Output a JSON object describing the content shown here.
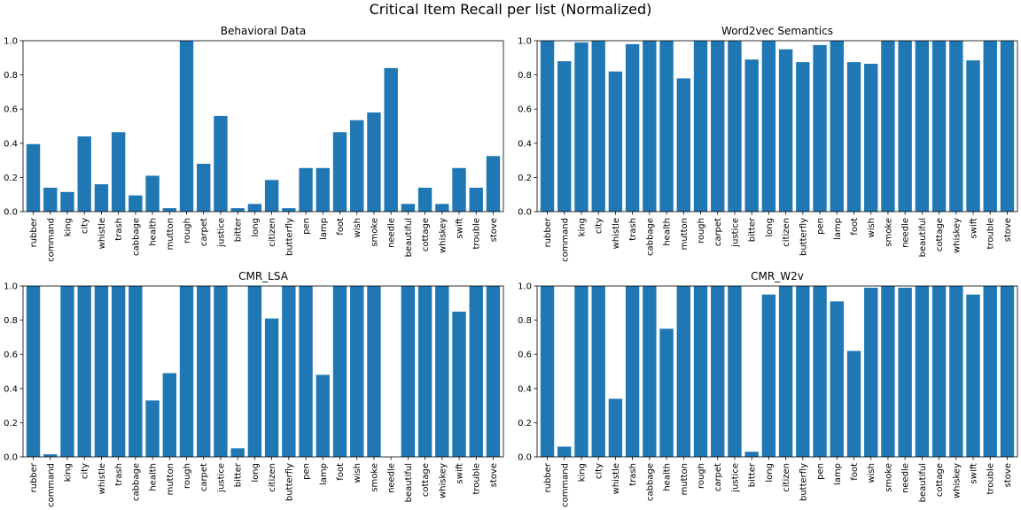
{
  "figure": {
    "title": "Critical Item Recall per list (Normalized)"
  },
  "colors": {
    "bar": "#1f77b4",
    "axis": "#000000",
    "background": "#ffffff"
  },
  "chart_data": [
    {
      "type": "bar",
      "title": "Behavioral Data",
      "xlabel": "",
      "ylabel": "",
      "ylim": [
        0,
        1
      ],
      "yticks": [
        "0.0",
        "0.2",
        "0.4",
        "0.6",
        "0.8",
        "1.0"
      ],
      "grid": false,
      "categories": [
        "rubber",
        "command",
        "king",
        "city",
        "whistle",
        "trash",
        "cabbage",
        "health",
        "mutton",
        "rough",
        "carpet",
        "justice",
        "bitter",
        "long",
        "citizen",
        "butterfly",
        "pen",
        "lamp",
        "foot",
        "wish",
        "smoke",
        "needle",
        "beautiful",
        "cottage",
        "whiskey",
        "swift",
        "trouble",
        "stove"
      ],
      "values": [
        0.395,
        0.14,
        0.115,
        0.44,
        0.16,
        0.465,
        0.095,
        0.21,
        0.02,
        1.0,
        0.28,
        0.56,
        0.02,
        0.045,
        0.185,
        0.02,
        0.255,
        0.255,
        0.465,
        0.535,
        0.58,
        0.84,
        0.045,
        0.14,
        0.045,
        0.255,
        0.14,
        0.325
      ]
    },
    {
      "type": "bar",
      "title": "Word2vec Semantics",
      "xlabel": "",
      "ylabel": "",
      "ylim": [
        0,
        1
      ],
      "yticks": [
        "0.0",
        "0.2",
        "0.4",
        "0.6",
        "0.8",
        "1.0"
      ],
      "grid": false,
      "categories": [
        "rubber",
        "command",
        "king",
        "city",
        "whistle",
        "trash",
        "cabbage",
        "health",
        "mutton",
        "rough",
        "carpet",
        "justice",
        "bitter",
        "long",
        "citizen",
        "butterfly",
        "pen",
        "lamp",
        "foot",
        "wish",
        "smoke",
        "needle",
        "beautiful",
        "cottage",
        "whiskey",
        "swift",
        "trouble",
        "stove"
      ],
      "values": [
        1.0,
        0.88,
        0.99,
        1.0,
        0.82,
        0.98,
        1.0,
        1.0,
        0.78,
        1.0,
        1.0,
        1.0,
        0.89,
        1.0,
        0.95,
        0.875,
        0.975,
        1.0,
        0.875,
        0.865,
        1.0,
        1.0,
        1.0,
        1.0,
        1.0,
        0.885,
        1.0,
        1.0
      ]
    },
    {
      "type": "bar",
      "title": "CMR_LSA",
      "xlabel": "",
      "ylabel": "",
      "ylim": [
        0,
        1
      ],
      "yticks": [
        "0.0",
        "0.2",
        "0.4",
        "0.6",
        "0.8",
        "1.0"
      ],
      "grid": false,
      "categories": [
        "rubber",
        "command",
        "king",
        "city",
        "whistle",
        "trash",
        "cabbage",
        "health",
        "mutton",
        "rough",
        "carpet",
        "justice",
        "bitter",
        "long",
        "citizen",
        "butterfly",
        "pen",
        "lamp",
        "foot",
        "wish",
        "smoke",
        "needle",
        "beautiful",
        "cottage",
        "whiskey",
        "swift",
        "trouble",
        "stove"
      ],
      "values": [
        1.0,
        0.015,
        1.0,
        1.0,
        1.0,
        1.0,
        1.0,
        0.33,
        0.49,
        1.0,
        1.0,
        1.0,
        0.05,
        1.0,
        0.81,
        1.0,
        1.0,
        0.48,
        1.0,
        1.0,
        1.0,
        0.0,
        1.0,
        1.0,
        1.0,
        0.85,
        1.0,
        1.0
      ]
    },
    {
      "type": "bar",
      "title": "CMR_W2v",
      "xlabel": "",
      "ylabel": "",
      "ylim": [
        0,
        1
      ],
      "yticks": [
        "0.0",
        "0.2",
        "0.4",
        "0.6",
        "0.8",
        "1.0"
      ],
      "grid": false,
      "categories": [
        "rubber",
        "command",
        "king",
        "city",
        "whistle",
        "trash",
        "cabbage",
        "health",
        "mutton",
        "rough",
        "carpet",
        "justice",
        "bitter",
        "long",
        "citizen",
        "butterfly",
        "pen",
        "lamp",
        "foot",
        "wish",
        "smoke",
        "needle",
        "beautiful",
        "cottage",
        "whiskey",
        "swift",
        "trouble",
        "stove"
      ],
      "values": [
        1.0,
        0.06,
        1.0,
        1.0,
        0.34,
        1.0,
        1.0,
        0.75,
        1.0,
        1.0,
        1.0,
        1.0,
        0.03,
        0.95,
        1.0,
        1.0,
        1.0,
        0.91,
        0.62,
        0.99,
        1.0,
        0.99,
        1.0,
        1.0,
        1.0,
        0.95,
        1.0,
        1.0
      ]
    }
  ]
}
